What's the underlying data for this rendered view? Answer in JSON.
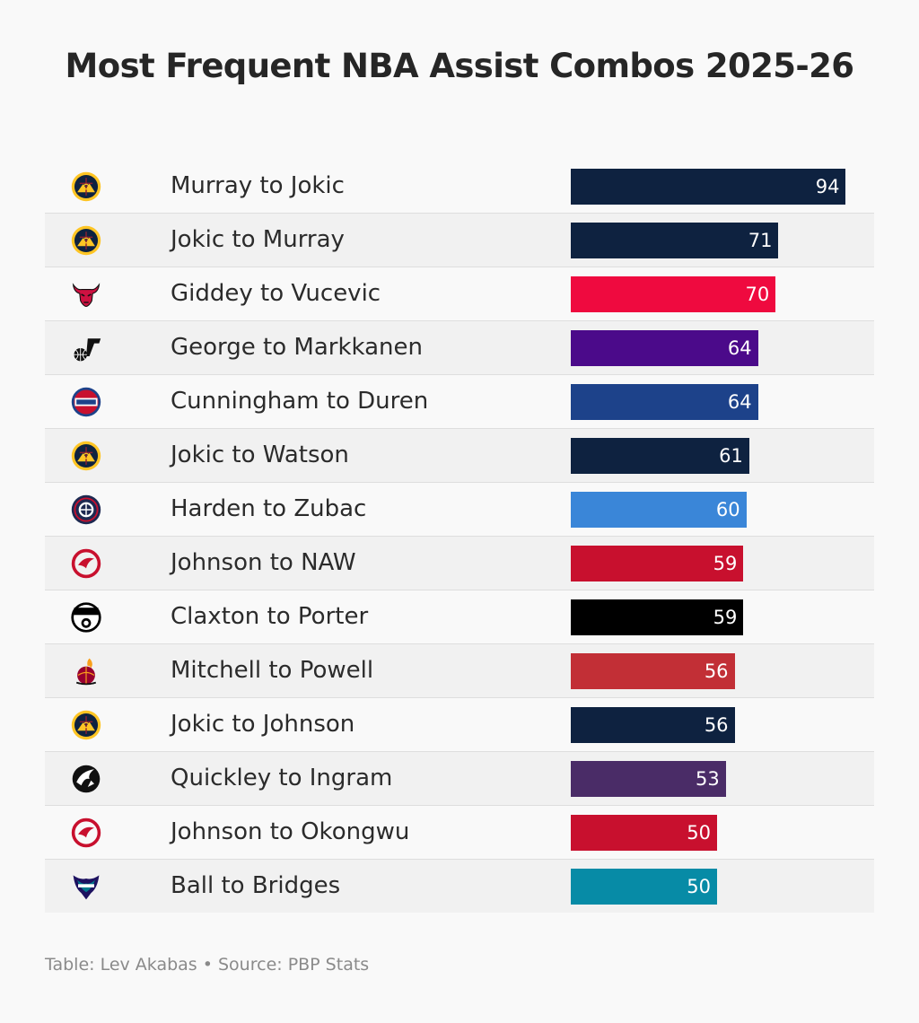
{
  "title": "Most Frequent NBA Assist Combos 2025-26",
  "footer": "Table: Lev Akabas • Source: PBP Stats",
  "chart_data": {
    "type": "bar",
    "orientation": "horizontal",
    "title": "Most Frequent NBA Assist Combos 2025-26",
    "xmax": 100,
    "rows": [
      {
        "label": "Murray to Jokic",
        "value": 94,
        "color": "#0e2240",
        "team_icon": "nuggets-logo-icon"
      },
      {
        "label": "Jokic to Murray",
        "value": 71,
        "color": "#0e2240",
        "team_icon": "nuggets-logo-icon"
      },
      {
        "label": "Giddey to Vucevic",
        "value": 70,
        "color": "#ef0a3f",
        "team_icon": "bulls-logo-icon"
      },
      {
        "label": "George to Markkanen",
        "value": 64,
        "color": "#4b0a8a",
        "team_icon": "jazz-logo-icon"
      },
      {
        "label": "Cunningham to Duren",
        "value": 64,
        "color": "#1d428a",
        "team_icon": "pistons-logo-icon"
      },
      {
        "label": "Jokic to Watson",
        "value": 61,
        "color": "#0e2240",
        "team_icon": "nuggets-logo-icon"
      },
      {
        "label": "Harden to Zubac",
        "value": 60,
        "color": "#3a86d8",
        "team_icon": "clippers-logo-icon"
      },
      {
        "label": "Johnson to NAW",
        "value": 59,
        "color": "#c8102e",
        "team_icon": "hawks-logo-icon"
      },
      {
        "label": "Claxton to Porter",
        "value": 59,
        "color": "#000000",
        "team_icon": "nets-logo-icon"
      },
      {
        "label": "Mitchell to Powell",
        "value": 56,
        "color": "#c22f36",
        "team_icon": "heat-logo-icon"
      },
      {
        "label": "Jokic to Johnson",
        "value": 56,
        "color": "#0e2240",
        "team_icon": "nuggets-logo-icon"
      },
      {
        "label": "Quickley to Ingram",
        "value": 53,
        "color": "#4a2c67",
        "team_icon": "raptors-logo-icon"
      },
      {
        "label": "Johnson to Okongwu",
        "value": 50,
        "color": "#c8102e",
        "team_icon": "hawks-logo-icon"
      },
      {
        "label": "Ball to Bridges",
        "value": 50,
        "color": "#078ba6",
        "team_icon": "hornets-logo-icon"
      }
    ]
  }
}
